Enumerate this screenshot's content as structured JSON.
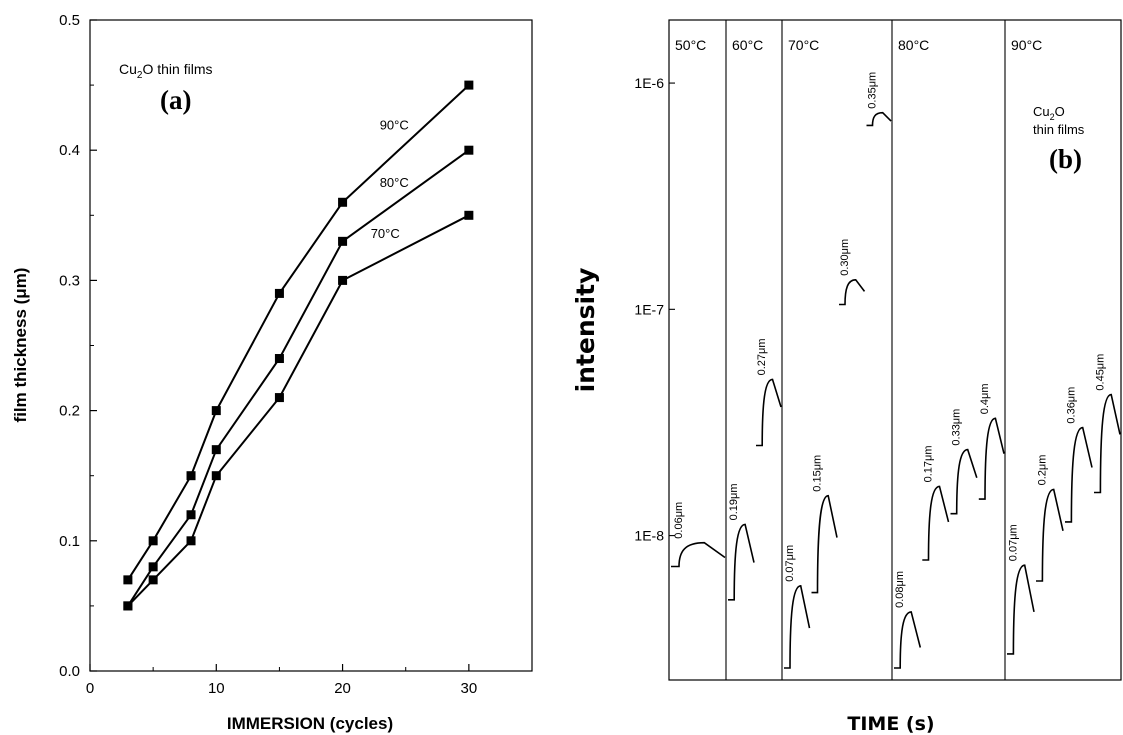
{
  "chart_data": [
    {
      "type": "line",
      "panel_label": "(a)",
      "annotation": {
        "main": "Cu",
        "sub": "2",
        "tail": "O thin films"
      },
      "xlabel": "IMMERSION  (cycles)",
      "ylabel": "film thickness  (μm)",
      "xlim": [
        0,
        35
      ],
      "ylim": [
        0.0,
        0.5
      ],
      "xticks": [
        "0",
        "10",
        "20",
        "30"
      ],
      "yticks": [
        "0.0",
        "0.1",
        "0.2",
        "0.3",
        "0.4",
        "0.5"
      ],
      "x": [
        3,
        5,
        8,
        10,
        15,
        20,
        30
      ],
      "series": [
        {
          "name": "90°C",
          "values": [
            0.07,
            0.1,
            0.15,
            0.2,
            0.29,
            0.36,
            0.45
          ]
        },
        {
          "name": "80°C",
          "values": [
            0.05,
            0.08,
            0.12,
            0.17,
            0.24,
            0.33,
            0.4
          ]
        },
        {
          "name": "70°C",
          "values": [
            0.05,
            0.07,
            0.1,
            0.15,
            0.21,
            0.3,
            0.35
          ]
        }
      ],
      "marker": "filled-square",
      "grid": false
    },
    {
      "type": "line",
      "panel_label": "(b)",
      "annotation": {
        "main": "Cu",
        "sub": "2",
        "tail": "O",
        "line2": "thin films"
      },
      "xlabel": "TIME (s)",
      "ylabel": "intensity",
      "yscale": "log",
      "ylim": [
        2.3e-09,
        1.9e-06
      ],
      "yticks": [
        "1E-8",
        "1E-7",
        "1E-6"
      ],
      "ytick_values": [
        1e-08,
        1e-07,
        1e-06
      ],
      "panels": [
        "50°C",
        "60°C",
        "70°C",
        "80°C",
        "90°C"
      ],
      "curves": [
        {
          "panel": 0,
          "label": "0.06μm",
          "base": 7.3e-09,
          "peak": 9.3e-09,
          "end": 8e-09
        },
        {
          "panel": 1,
          "label": "0.19μm",
          "base": 5.2e-09,
          "peak": 1.12e-08,
          "end": 7.6e-09
        },
        {
          "panel": 1,
          "label": "0.27μm",
          "base": 2.5e-08,
          "peak": 4.9e-08,
          "end": 3.7e-08
        },
        {
          "panel": 2,
          "label": "0.07μm",
          "base": 2.6e-09,
          "peak": 6e-09,
          "end": 3.9e-09
        },
        {
          "panel": 2,
          "label": "0.15μm",
          "base": 5.6e-09,
          "peak": 1.5e-08,
          "end": 9.8e-09
        },
        {
          "panel": 2,
          "label": "0.30μm",
          "base": 1.05e-07,
          "peak": 1.35e-07,
          "end": 1.2e-07
        },
        {
          "panel": 2,
          "label": "0.35μm",
          "base": 6.5e-07,
          "peak": 7.4e-07,
          "end": 6.8e-07
        },
        {
          "panel": 3,
          "label": "0.08μm",
          "base": 2.6e-09,
          "peak": 4.6e-09,
          "end": 3.2e-09
        },
        {
          "panel": 3,
          "label": "0.17μm",
          "base": 7.8e-09,
          "peak": 1.65e-08,
          "end": 1.15e-08
        },
        {
          "panel": 3,
          "label": "0.33μm",
          "base": 1.25e-08,
          "peak": 2.4e-08,
          "end": 1.8e-08
        },
        {
          "panel": 3,
          "label": "0.4μm",
          "base": 1.45e-08,
          "peak": 3.3e-08,
          "end": 2.3e-08
        },
        {
          "panel": 4,
          "label": "0.07μm",
          "base": 3e-09,
          "peak": 7.4e-09,
          "end": 4.6e-09
        },
        {
          "panel": 4,
          "label": "0.2μm",
          "base": 6.3e-09,
          "peak": 1.6e-08,
          "end": 1.05e-08
        },
        {
          "panel": 4,
          "label": "0.36μm",
          "base": 1.15e-08,
          "peak": 3e-08,
          "end": 2e-08
        },
        {
          "panel": 4,
          "label": "0.45μm",
          "base": 1.55e-08,
          "peak": 4.2e-08,
          "end": 2.8e-08
        }
      ],
      "grid": false
    }
  ]
}
